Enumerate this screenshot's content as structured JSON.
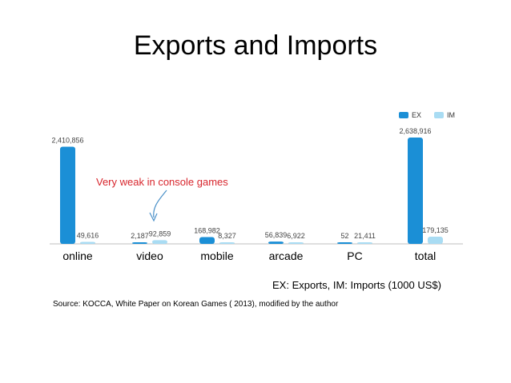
{
  "title": "Exports and Imports",
  "legend": [
    {
      "label": "EX",
      "color": "#1b8fd6"
    },
    {
      "label": "IM",
      "color": "#a9dcf3"
    }
  ],
  "annotation": "Very weak in console games",
  "note": "EX: Exports, IM: Imports    (1000 US$)",
  "source": "Source: KOCCA, White Paper on Korean Games ( 2013), modified by the author",
  "chart_data": {
    "type": "bar",
    "categories": [
      "online",
      "video",
      "mobile",
      "arcade",
      "PC",
      "total"
    ],
    "series": [
      {
        "name": "EX",
        "values": [
          2410856,
          2187,
          168982,
          56839,
          52,
          2638916
        ],
        "labels": [
          "2,410,856",
          "2,187",
          "168,982",
          "56,839",
          "52",
          "2,638,916"
        ]
      },
      {
        "name": "IM",
        "values": [
          49616,
          92859,
          8327,
          6922,
          21411,
          179135
        ],
        "labels": [
          "49,616",
          "92,859",
          "8,327",
          "6,922",
          "21,411",
          "179,135"
        ]
      }
    ],
    "ylim": [
      0,
      2638916
    ],
    "grid": false,
    "legend_position": "top-right"
  }
}
